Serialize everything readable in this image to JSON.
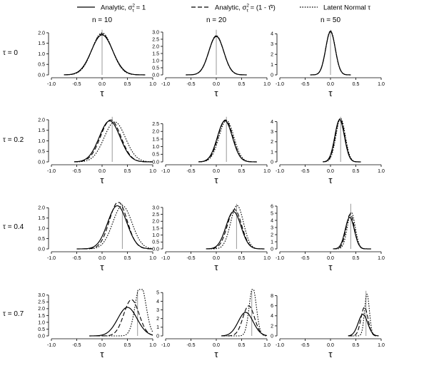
{
  "legend": {
    "items": [
      {
        "label_main": "Analytic, σ",
        "label_rest": " = 1",
        "dash": "solid"
      },
      {
        "label_main": "Analytic, σ",
        "label_rest": " = (1 - τ̂²)",
        "dash": "dashed"
      },
      {
        "label_main": "Latent Normal τ",
        "label_rest": "",
        "dash": "dotted"
      }
    ],
    "sub": "τ",
    "sup": "2"
  },
  "col_titles": [
    "n = 10",
    "n = 20",
    "n = 50"
  ],
  "row_labels": [
    "τ = 0",
    "τ = 0.2",
    "τ = 0.4",
    "τ = 0.7"
  ],
  "x_axis_label": "τ",
  "x_ticks": [
    "-1.0",
    "-0.5",
    "0.0",
    "0.5",
    "1.0"
  ],
  "colors": {
    "curves": "#000000",
    "truth_line": "#999999",
    "axis": "#000000"
  },
  "chart_data": {
    "type": "line",
    "layout": "4x3 grid of density plots",
    "xlim": [
      -1.0,
      1.0
    ],
    "xlabel": "τ",
    "series_names": [
      "Analytic, σ²_τ = 1",
      "Analytic, σ²_τ = (1 - τ̂²)",
      "Latent Normal τ"
    ],
    "panels": [
      {
        "row": "τ = 0",
        "col": "n = 10",
        "true_tau": 0.0,
        "yticks": [
          0.0,
          0.5,
          1.0,
          1.5,
          2.0
        ],
        "ylim": [
          0,
          2.1
        ],
        "curves": [
          {
            "mu": 0.0,
            "sd": 0.21,
            "lo": -0.75,
            "hi": 0.85
          },
          {
            "mu": 0.0,
            "sd": 0.205,
            "lo": -0.75,
            "hi": 0.85
          },
          {
            "mu": 0.0,
            "sd": 0.2,
            "lo": -0.75,
            "hi": 0.85
          }
        ]
      },
      {
        "row": "τ = 0",
        "col": "n = 20",
        "true_tau": 0.0,
        "yticks": [
          0.0,
          0.5,
          1.0,
          1.5,
          2.0,
          2.5,
          3.0
        ],
        "ylim": [
          0,
          3.1
        ],
        "curves": [
          {
            "mu": 0.0,
            "sd": 0.148,
            "lo": -0.6,
            "hi": 0.6
          },
          {
            "mu": 0.0,
            "sd": 0.146,
            "lo": -0.6,
            "hi": 0.6
          },
          {
            "mu": 0.0,
            "sd": 0.145,
            "lo": -0.6,
            "hi": 0.6
          }
        ]
      },
      {
        "row": "τ = 0",
        "col": "n = 50",
        "true_tau": 0.0,
        "yticks": [
          0,
          1,
          2,
          3,
          4
        ],
        "ylim": [
          0,
          4.3
        ],
        "curves": [
          {
            "mu": 0.0,
            "sd": 0.095,
            "lo": -0.4,
            "hi": 0.4
          },
          {
            "mu": 0.0,
            "sd": 0.094,
            "lo": -0.4,
            "hi": 0.4
          },
          {
            "mu": 0.0,
            "sd": 0.093,
            "lo": -0.4,
            "hi": 0.4
          }
        ]
      },
      {
        "row": "τ = 0.2",
        "col": "n = 10",
        "true_tau": 0.2,
        "yticks": [
          0.0,
          0.5,
          1.0,
          1.5,
          2.0
        ],
        "ylim": [
          0,
          2.1
        ],
        "curves": [
          {
            "mu": 0.15,
            "sd": 0.205,
            "lo": -0.55,
            "hi": 1.0
          },
          {
            "mu": 0.17,
            "sd": 0.2,
            "lo": -0.55,
            "hi": 1.0
          },
          {
            "mu": 0.25,
            "sd": 0.21,
            "lo": -0.55,
            "hi": 1.0
          }
        ]
      },
      {
        "row": "τ = 0.2",
        "col": "n = 20",
        "true_tau": 0.2,
        "yticks": [
          0.0,
          0.5,
          1.0,
          1.5,
          2.0,
          2.5
        ],
        "ylim": [
          0,
          2.9
        ],
        "curves": [
          {
            "mu": 0.17,
            "sd": 0.148,
            "lo": -0.35,
            "hi": 0.8
          },
          {
            "mu": 0.18,
            "sd": 0.145,
            "lo": -0.35,
            "hi": 0.8
          },
          {
            "mu": 0.2,
            "sd": 0.147,
            "lo": -0.35,
            "hi": 0.8
          }
        ]
      },
      {
        "row": "τ = 0.2",
        "col": "n = 50",
        "true_tau": 0.2,
        "yticks": [
          0,
          1,
          2,
          3,
          4
        ],
        "ylim": [
          0,
          4.4
        ],
        "curves": [
          {
            "mu": 0.18,
            "sd": 0.095,
            "lo": -0.15,
            "hi": 0.6
          },
          {
            "mu": 0.19,
            "sd": 0.093,
            "lo": -0.15,
            "hi": 0.6
          },
          {
            "mu": 0.2,
            "sd": 0.092,
            "lo": -0.15,
            "hi": 0.6
          }
        ]
      },
      {
        "row": "τ = 0.4",
        "col": "n = 10",
        "true_tau": 0.4,
        "yticks": [
          0.0,
          0.5,
          1.0,
          1.5,
          2.0
        ],
        "ylim": [
          0,
          2.15
        ],
        "curves": [
          {
            "mu": 0.3,
            "sd": 0.19,
            "lo": -0.5,
            "hi": 1.0
          },
          {
            "mu": 0.32,
            "sd": 0.175,
            "lo": -0.5,
            "hi": 1.0
          },
          {
            "mu": 0.4,
            "sd": 0.19,
            "lo": -0.5,
            "hi": 1.0
          }
        ]
      },
      {
        "row": "τ = 0.4",
        "col": "n = 20",
        "true_tau": 0.4,
        "yticks": [
          0.0,
          0.5,
          1.0,
          1.5,
          2.0,
          2.5,
          3.0
        ],
        "ylim": [
          0,
          3.2
        ],
        "curves": [
          {
            "mu": 0.34,
            "sd": 0.148,
            "lo": -0.2,
            "hi": 0.95
          },
          {
            "mu": 0.36,
            "sd": 0.14,
            "lo": -0.2,
            "hi": 0.95
          },
          {
            "mu": 0.41,
            "sd": 0.127,
            "lo": -0.2,
            "hi": 0.95
          }
        ]
      },
      {
        "row": "τ = 0.4",
        "col": "n = 50",
        "true_tau": 0.4,
        "yticks": [
          0,
          1,
          2,
          3,
          4,
          5,
          6
        ],
        "ylim": [
          0,
          6.2
        ],
        "curves": [
          {
            "mu": 0.38,
            "sd": 0.09,
            "lo": 0.05,
            "hi": 0.8
          },
          {
            "mu": 0.39,
            "sd": 0.082,
            "lo": 0.05,
            "hi": 0.8
          },
          {
            "mu": 0.41,
            "sd": 0.078,
            "lo": 0.05,
            "hi": 0.8
          }
        ]
      },
      {
        "row": "τ = 0.7",
        "col": "n = 10",
        "true_tau": 0.7,
        "yticks": [
          0.0,
          0.5,
          1.0,
          1.5,
          2.0,
          2.5,
          3.0
        ],
        "ylim": [
          0,
          3.25
        ],
        "curves": [
          {
            "mu": 0.5,
            "sd": 0.19,
            "lo": -0.25,
            "hi": 1.0
          },
          {
            "mu": 0.58,
            "sd": 0.15,
            "lo": -0.25,
            "hi": 1.0
          },
          {
            "mu": 0.76,
            "sd": 0.105,
            "lo": -0.25,
            "hi": 1.0
          }
        ]
      },
      {
        "row": "τ = 0.7",
        "col": "n = 20",
        "true_tau": 0.7,
        "yticks": [
          0,
          1,
          2,
          3,
          4,
          5
        ],
        "ylim": [
          0,
          5.1
        ],
        "curves": [
          {
            "mu": 0.58,
            "sd": 0.147,
            "lo": 0.1,
            "hi": 1.0
          },
          {
            "mu": 0.64,
            "sd": 0.115,
            "lo": 0.1,
            "hi": 1.0
          },
          {
            "mu": 0.72,
            "sd": 0.072,
            "lo": 0.1,
            "hi": 1.0
          }
        ]
      },
      {
        "row": "τ = 0.7",
        "col": "n = 50",
        "true_tau": 0.7,
        "yticks": [
          0,
          2,
          4,
          6,
          8
        ],
        "ylim": [
          0,
          8.8
        ],
        "curves": [
          {
            "mu": 0.64,
            "sd": 0.093,
            "lo": 0.35,
            "hi": 0.95
          },
          {
            "mu": 0.67,
            "sd": 0.07,
            "lo": 0.35,
            "hi": 0.95
          },
          {
            "mu": 0.72,
            "sd": 0.048,
            "lo": 0.35,
            "hi": 0.95
          }
        ]
      }
    ]
  }
}
